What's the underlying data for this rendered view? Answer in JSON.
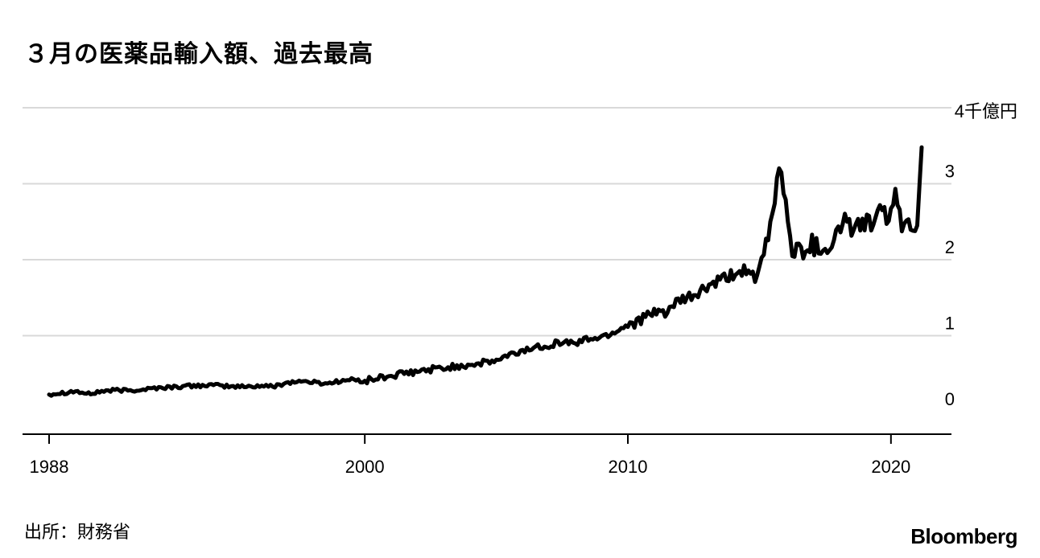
{
  "header": {
    "title": "３月の医薬品輸入額、過去最高"
  },
  "footer": {
    "source": "出所：財務省",
    "brand": "Bloomberg"
  },
  "chart_data": {
    "type": "line",
    "title": "３月の医薬品輸入額、過去最高",
    "unit_label": "4千億円",
    "xlabel": "",
    "ylabel": "",
    "xlim": [
      1988.0,
      2022.3
    ],
    "ylim": [
      0,
      4
    ],
    "x_ticks": [
      1988,
      2000,
      2010,
      2020
    ],
    "y_ticks": [
      0,
      1,
      2,
      3
    ],
    "y_tick_labels": [
      "0",
      "1",
      "2",
      "3"
    ],
    "grid": true,
    "line_color": "#000000",
    "series": [
      {
        "values": [
          [
            1988.0,
            0.23
          ],
          [
            1988.5,
            0.25
          ],
          [
            1989.0,
            0.27
          ],
          [
            1989.5,
            0.23
          ],
          [
            1990.0,
            0.27
          ],
          [
            1990.5,
            0.28
          ],
          [
            1991.0,
            0.28
          ],
          [
            1991.5,
            0.29
          ],
          [
            1992.0,
            0.31
          ],
          [
            1992.5,
            0.32
          ],
          [
            1993.0,
            0.33
          ],
          [
            1993.5,
            0.34
          ],
          [
            1994.0,
            0.35
          ],
          [
            1994.5,
            0.34
          ],
          [
            1995.0,
            0.33
          ],
          [
            1995.5,
            0.33
          ],
          [
            1996.0,
            0.34
          ],
          [
            1996.5,
            0.33
          ],
          [
            1997.0,
            0.38
          ],
          [
            1997.5,
            0.4
          ],
          [
            1998.0,
            0.39
          ],
          [
            1998.5,
            0.37
          ],
          [
            1999.0,
            0.4
          ],
          [
            1999.5,
            0.42
          ],
          [
            2000.0,
            0.4
          ],
          [
            2000.5,
            0.44
          ],
          [
            2001.0,
            0.47
          ],
          [
            2001.5,
            0.5
          ],
          [
            2002.0,
            0.52
          ],
          [
            2002.5,
            0.56
          ],
          [
            2003.0,
            0.57
          ],
          [
            2003.5,
            0.6
          ],
          [
            2004.0,
            0.62
          ],
          [
            2004.5,
            0.64
          ],
          [
            2005.0,
            0.67
          ],
          [
            2005.5,
            0.74
          ],
          [
            2006.0,
            0.8
          ],
          [
            2006.5,
            0.85
          ],
          [
            2007.0,
            0.88
          ],
          [
            2007.5,
            0.92
          ],
          [
            2008.0,
            0.9
          ],
          [
            2008.5,
            0.96
          ],
          [
            2009.0,
            0.98
          ],
          [
            2009.5,
            1.05
          ],
          [
            2010.0,
            1.15
          ],
          [
            2010.5,
            1.22
          ],
          [
            2011.0,
            1.28
          ],
          [
            2011.5,
            1.33
          ],
          [
            2012.0,
            1.45
          ],
          [
            2012.5,
            1.52
          ],
          [
            2013.0,
            1.63
          ],
          [
            2013.5,
            1.72
          ],
          [
            2014.0,
            1.8
          ],
          [
            2014.5,
            1.88
          ],
          [
            2014.9,
            1.7
          ],
          [
            2015.2,
            2.1
          ],
          [
            2015.5,
            2.6
          ],
          [
            2015.8,
            3.35
          ],
          [
            2016.0,
            2.7
          ],
          [
            2016.3,
            2.05
          ],
          [
            2016.6,
            2.15
          ],
          [
            2017.0,
            2.2
          ],
          [
            2017.5,
            2.15
          ],
          [
            2018.0,
            2.35
          ],
          [
            2018.3,
            2.6
          ],
          [
            2018.6,
            2.3
          ],
          [
            2018.9,
            2.55
          ],
          [
            2019.2,
            2.45
          ],
          [
            2019.5,
            2.6
          ],
          [
            2019.8,
            2.55
          ],
          [
            2020.0,
            2.7
          ],
          [
            2020.2,
            2.85
          ],
          [
            2020.4,
            2.35
          ],
          [
            2020.6,
            2.55
          ],
          [
            2020.8,
            2.5
          ],
          [
            2021.0,
            2.45
          ],
          [
            2021.17,
            3.5
          ]
        ]
      }
    ]
  }
}
